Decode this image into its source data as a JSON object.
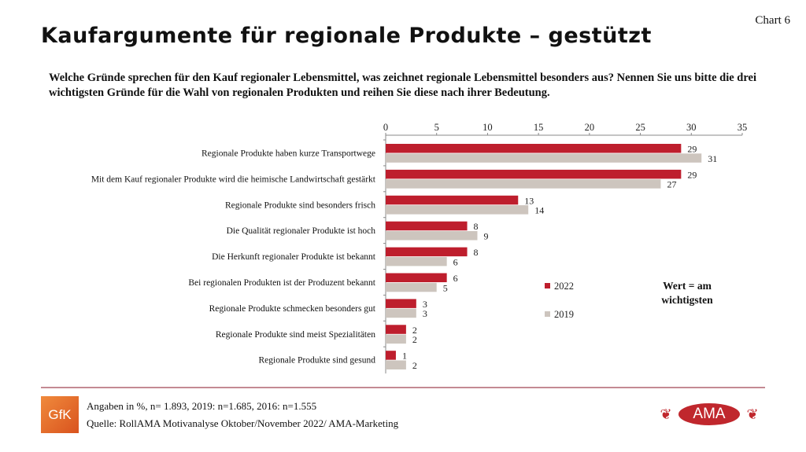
{
  "header": {
    "title": "Kaufargumente für regionale Produkte – gestützt",
    "chart_no": "Chart 6",
    "question": "Welche Gründe sprechen für den Kauf regionaler Lebensmittel, was zeichnet regionale Lebensmittel besonders aus? Nennen Sie uns bitte die drei wichtigsten Gründe für die Wahl von regionalen Produkten und reihen Sie diese nach ihrer Bedeutung."
  },
  "chart_data": {
    "type": "bar",
    "orientation": "horizontal",
    "categories": [
      "Regionale Produkte haben kurze Transportwege",
      "Mit dem Kauf regionaler Produkte wird die heimische Landwirtschaft gestärkt",
      "Regionale Produkte sind besonders frisch",
      "Die Qualität regionaler Produkte ist hoch",
      "Die Herkunft regionaler Produkte ist bekannt",
      "Bei regionalen Produkten ist der Produzent bekannt",
      "Regionale Produkte schmecken besonders gut",
      "Regionale Produkte sind meist Spezialitäten",
      "Regionale Produkte sind gesund"
    ],
    "series": [
      {
        "name": "2022",
        "color": "#be1e2d",
        "values": [
          29,
          29,
          13,
          8,
          8,
          6,
          3,
          2,
          1
        ]
      },
      {
        "name": "2019",
        "color": "#cdc5be",
        "values": [
          31,
          27,
          14,
          9,
          6,
          5,
          3,
          2,
          2
        ]
      }
    ],
    "xlim": [
      0,
      35
    ],
    "xticks": [
      0,
      5,
      10,
      15,
      20,
      25,
      30,
      35
    ],
    "legend": "right",
    "annotation": "Wert = am wichtigsten"
  },
  "footer": {
    "logo_left": "GfK",
    "note": "Angaben in %, n= 1.893, 2019: n=1.685, 2016: n=1.555",
    "source": "Quelle: RollAMA Motivanalyse Oktober/November 2022/ AMA-Marketing",
    "logo_right": "AMA"
  }
}
